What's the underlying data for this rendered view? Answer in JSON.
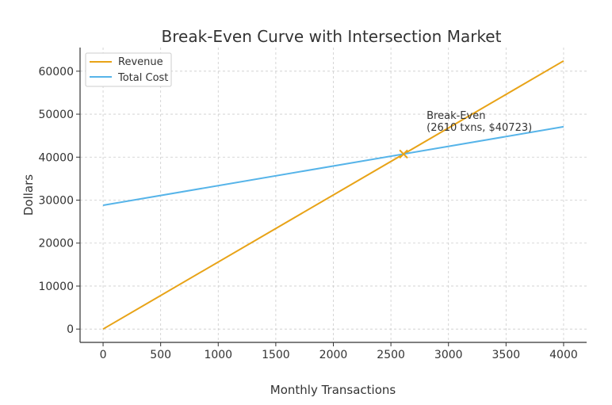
{
  "chart_data": {
    "type": "line",
    "title": "Break-Even Curve with Intersection Market",
    "xlabel": "Monthly Transactions",
    "ylabel": "Dollars",
    "xlim": [
      -200,
      4200
    ],
    "ylim": [
      -3100,
      65500
    ],
    "xticks": [
      0,
      500,
      1000,
      1500,
      2000,
      2500,
      3000,
      3500,
      4000
    ],
    "yticks": [
      0,
      10000,
      20000,
      30000,
      40000,
      50000,
      60000
    ],
    "grid": true,
    "legend_position": "upper-left",
    "series": [
      {
        "name": "Revenue",
        "color": "#E8A317",
        "x": [
          0,
          4000
        ],
        "y": [
          0,
          62400
        ]
      },
      {
        "name": "Total Cost",
        "color": "#56B4E9",
        "x": [
          0,
          4000
        ],
        "y": [
          28800,
          47080
        ]
      }
    ],
    "marker": {
      "x": 2610,
      "y": 40723,
      "symbol": "x",
      "color": "#E8A317"
    },
    "annotation": {
      "lines": [
        "Break-Even",
        "(2610 txns, $40723)"
      ],
      "x": 2810,
      "y": 46500
    }
  }
}
